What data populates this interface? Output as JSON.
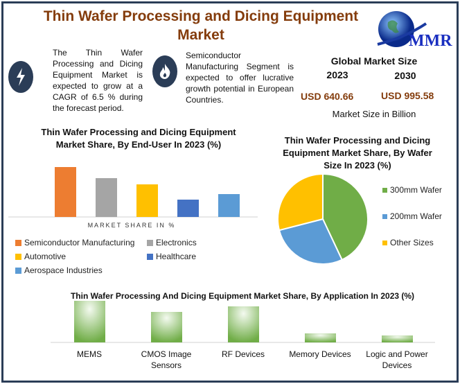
{
  "header": {
    "title": "Thin Wafer Processing and Dicing Equipment Market",
    "logo_text": "MMR"
  },
  "highlights": [
    {
      "icon": "lightning-icon",
      "text": "The Thin Wafer Processing and Dicing Equipment Market is expected to grow at a CAGR of 6.5 % during the forecast period."
    },
    {
      "icon": "flame-icon",
      "text": "Semiconductor Manufacturing Segment is expected to offer lucrative growth potential in European Countries."
    }
  ],
  "market_size": {
    "title": "Global Market Size",
    "year1": "2023",
    "year2": "2030",
    "value1": "USD 640.66",
    "value2": "USD 995.58",
    "unit": "Market Size in Billion"
  },
  "chart_data": [
    {
      "type": "bar",
      "title": "Thin Wafer Processing and Dicing Equipment Market Share, By End-User In 2023 (%)",
      "xlabel": "MARKET SHARE IN %",
      "categories": [
        "Semiconductor Manufacturing",
        "Electronics",
        "Automotive",
        "Healthcare",
        "Aerospace Industries"
      ],
      "values": [
        72,
        56,
        47,
        25,
        33
      ],
      "colors": [
        "#ed7d31",
        "#a5a5a5",
        "#ffc000",
        "#4472c4",
        "#5b9bd5"
      ],
      "legend": "bottom"
    },
    {
      "type": "pie",
      "title": "Thin Wafer Processing and Dicing Equipment Market Share, By Wafer Size In 2023 (%)",
      "categories": [
        "300mm Wafer",
        "200mm Wafer",
        "Other Sizes"
      ],
      "values": [
        43,
        28,
        29
      ],
      "colors": [
        "#70ad47",
        "#5b9bd5",
        "#ffc000"
      ],
      "legend": "right"
    },
    {
      "type": "bar",
      "title": "Thin Wafer Processing And Dicing Equipment Market Share, By Application In 2023 (%)",
      "categories": [
        "MEMS",
        "CMOS Image Sensors",
        "RF Devices",
        "Memory Devices",
        "Logic and Power Devices"
      ],
      "values": [
        60,
        44,
        52,
        13,
        10
      ],
      "colors": [
        "#70ad47"
      ]
    }
  ]
}
